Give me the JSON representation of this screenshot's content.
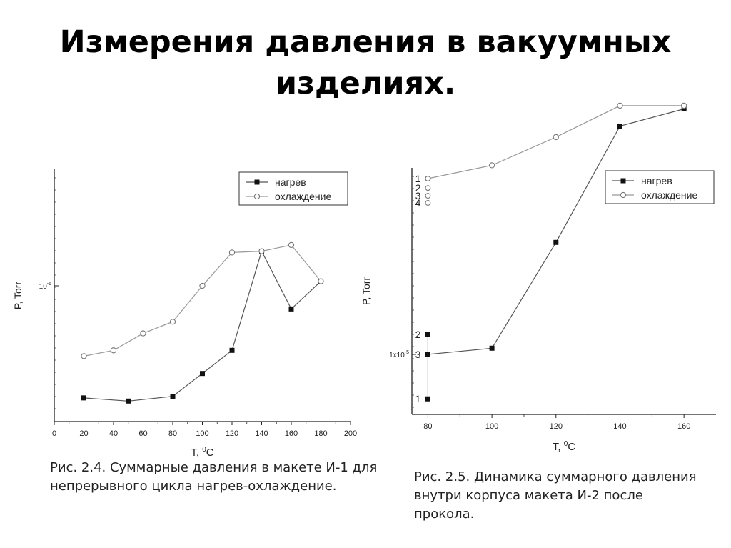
{
  "slide": {
    "title": "Измерения давления в вакуумных изделиях."
  },
  "captions": [
    "Рис. 2.4. Суммарные давления в макете И-1 для непрерывного цикла нагрев-охлаждение.",
    "Рис. 2.5. Динамика суммарного давления внутри корпуса макета И-2 после прокола."
  ],
  "chart_data": [
    {
      "type": "line",
      "title": "",
      "xlabel": "T, °C",
      "ylabel": "P, Torr",
      "xlim": [
        0,
        200
      ],
      "x_ticks": [
        0,
        20,
        40,
        60,
        80,
        100,
        120,
        140,
        160,
        180,
        200
      ],
      "y_scale": "log",
      "y_tick_labels": [
        {
          "value": 1e-06,
          "label": "10-6"
        }
      ],
      "grid": false,
      "legend_position": "top-right",
      "series": [
        {
          "name": "нагрев",
          "marker": "filled-square",
          "x": [
            20,
            50,
            80,
            100,
            120,
            140,
            160,
            180
          ],
          "y": [
            3e-07,
            2.9e-07,
            3.05e-07,
            3.9e-07,
            5e-07,
            1.45e-06,
            7.8e-07,
            1.05e-06
          ]
        },
        {
          "name": "охлаждение",
          "marker": "open-circle",
          "x": [
            20,
            40,
            60,
            80,
            100,
            120,
            140,
            160,
            180
          ],
          "y": [
            4.7e-07,
            5e-07,
            6e-07,
            6.8e-07,
            1e-06,
            1.43e-06,
            1.45e-06,
            1.55e-06,
            1.05e-06
          ]
        }
      ]
    },
    {
      "type": "line",
      "title": "",
      "xlabel": "T, °C",
      "ylabel": "P, Torr",
      "xlim": [
        75,
        170
      ],
      "x_ticks": [
        80,
        100,
        120,
        140,
        160
      ],
      "y_scale": "log",
      "y_tick_labels": [
        {
          "value": 1e-05,
          "label": "1x10-5"
        }
      ],
      "grid": false,
      "legend_position": "top-right",
      "series": [
        {
          "name": "нагрев",
          "marker": "filled-square",
          "x": [
            80,
            100,
            120,
            140,
            160
          ],
          "y": [
            1e-05,
            1.03e-05,
            1.7e-05,
            2.95e-05,
            3.2e-05
          ]
        },
        {
          "name": "охлаждение",
          "marker": "open-circle",
          "x": [
            80,
            100,
            120,
            140,
            160
          ],
          "y": [
            2.3e-05,
            2.45e-05,
            2.8e-05,
            3.25e-05,
            3.25e-05
          ]
        }
      ],
      "extra_points": [
        {
          "x": 80,
          "y": 8.1e-06,
          "marker": "filled-square",
          "label": "1"
        },
        {
          "x": 80,
          "y": 1.1e-05,
          "marker": "filled-square",
          "label": "2"
        },
        {
          "x": 80,
          "y": 1e-05,
          "marker": "filled-square",
          "label": "3"
        },
        {
          "x": 80,
          "y": 2.3e-05,
          "marker": "open-circle",
          "label": "1"
        },
        {
          "x": 80,
          "y": 2.2e-05,
          "marker": "open-circle",
          "label": "2"
        },
        {
          "x": 80,
          "y": 2.12e-05,
          "marker": "open-circle",
          "label": "3"
        },
        {
          "x": 80,
          "y": 2.05e-05,
          "marker": "open-circle",
          "label": "4"
        }
      ]
    }
  ]
}
